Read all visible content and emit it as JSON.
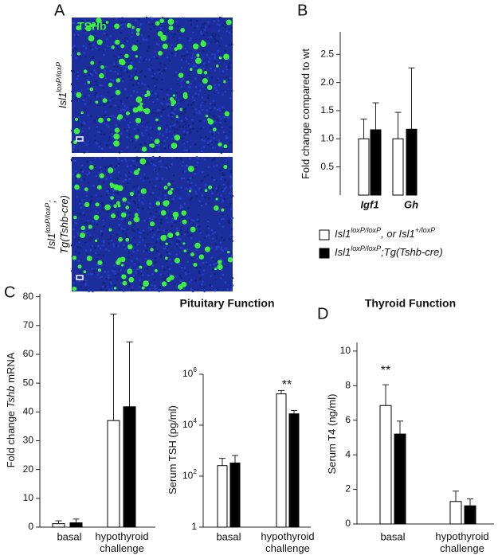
{
  "panel_labels": [
    "A",
    "B",
    "C",
    "D"
  ],
  "images": {
    "stain": "TSHb",
    "labels": [
      [
        [
          {
            "text": "Isl1"
          },
          {
            "text": "loxP/loxP",
            "sup": true
          }
        ]
      ],
      [
        [
          {
            "text": "Isl1"
          },
          {
            "text": "loxP/loxP",
            "sup": true
          },
          {
            "text": ";"
          }
        ],
        [
          {
            "text": "Tg(Tshb-cre)"
          }
        ]
      ]
    ]
  },
  "chart_data": [
    {
      "type": "bar",
      "ylabel": [
        {
          "text": "Fold change compared to wt"
        }
      ],
      "categories": [
        "Igf1",
        "Gh"
      ],
      "ylim": [
        0,
        2.9
      ],
      "yticks": [
        0.5,
        {
          "value": 1,
          "label": "1.0"
        },
        1.5,
        {
          "value": 2,
          "label": "2.0"
        },
        2.5
      ],
      "series": [
        {
          "name": [
            {
              "text": "Isl1"
            },
            {
              "text": "loxP/loxP",
              "sup": true
            },
            {
              "text": ", or Isl1"
            },
            {
              "text": "+/loxP",
              "sup": true
            }
          ],
          "color": "#ffffff",
          "values": [
            1.0,
            1.0
          ],
          "errors": [
            0.35,
            0.47
          ]
        },
        {
          "name": [
            {
              "text": "Isl1"
            },
            {
              "text": "loxP/loxP",
              "sup": true
            },
            {
              "text": ";Tg(Tshb-cre)"
            }
          ],
          "color": "#000000",
          "values": [
            1.16,
            1.17
          ],
          "errors": [
            0.48,
            1.09
          ]
        }
      ]
    },
    {
      "type": "bar",
      "title": "Pituitary Function",
      "ylabel": [
        {
          "text": "Fold change "
        },
        {
          "text": "Tshb",
          "italic": true
        },
        {
          "text": " mRNA"
        }
      ],
      "categories": [
        "basal",
        "hypothyroid challenge"
      ],
      "ylim": [
        0,
        81
      ],
      "yticks": [
        0,
        10,
        20,
        30,
        40,
        50,
        60,
        70,
        80
      ],
      "series": [
        {
          "color": "#ffffff",
          "values": [
            1.2,
            37
          ],
          "errors": [
            1,
            37
          ]
        },
        {
          "color": "#000000",
          "values": [
            1.5,
            41.8
          ],
          "errors": [
            1.3,
            22.5
          ]
        }
      ]
    },
    {
      "type": "bar",
      "log_scale": true,
      "ylabel": [
        {
          "text": "Serum TSH (pg/ml)"
        }
      ],
      "categories": [
        "basal",
        "hypothyroid challenge"
      ],
      "ylim": [
        1,
        1000000
      ],
      "yticks": [
        1,
        {
          "value": 100,
          "label": [
            {
              "text": "10"
            },
            {
              "text": "2",
              "sup": true
            }
          ]
        },
        {
          "value": 10000,
          "label": [
            {
              "text": "10"
            },
            {
              "text": "4",
              "sup": true
            }
          ]
        },
        {
          "value": 1000000,
          "label": [
            {
              "text": "10"
            },
            {
              "text": "6",
              "sup": true
            }
          ]
        }
      ],
      "annotation": "**",
      "series": [
        {
          "color": "#ffffff",
          "values": [
            260,
            170000
          ],
          "errors": [
            240,
            60000
          ]
        },
        {
          "color": "#000000",
          "values": [
            330,
            28000
          ],
          "errors": [
            320,
            10000
          ]
        }
      ]
    },
    {
      "type": "bar",
      "title": "Thyroid Function",
      "ylabel": [
        {
          "text": "Serum T4 (ng/ml)"
        }
      ],
      "categories": [
        "basal",
        "hypothyroid challenge"
      ],
      "ylim": [
        0,
        10.5
      ],
      "yticks": [
        0,
        2,
        4,
        6,
        8,
        10
      ],
      "annotation": "**",
      "series": [
        {
          "color": "#ffffff",
          "values": [
            6.85,
            1.3
          ],
          "errors": [
            1.2,
            0.6
          ]
        },
        {
          "color": "#000000",
          "values": [
            5.2,
            1.05
          ],
          "errors": [
            0.75,
            0.4
          ]
        }
      ]
    }
  ]
}
